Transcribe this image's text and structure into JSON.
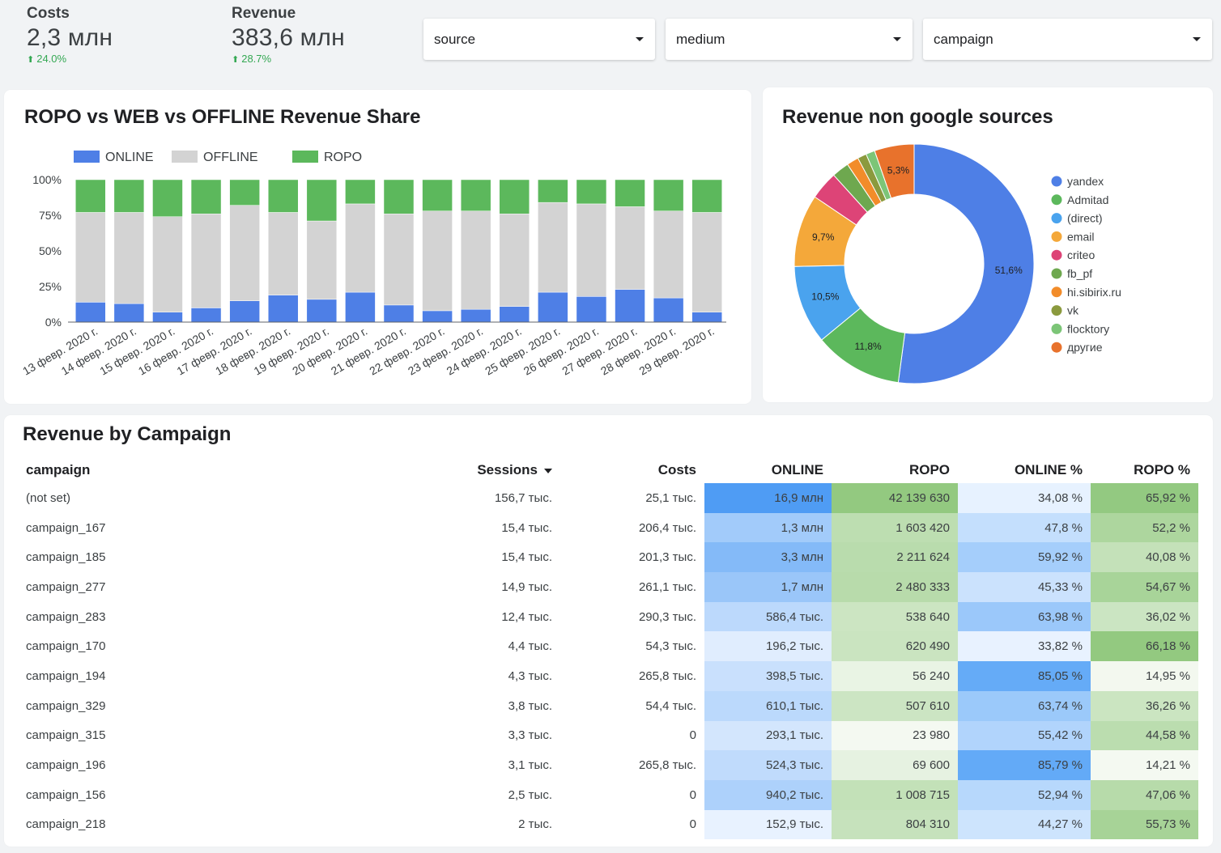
{
  "kpis": {
    "costs": {
      "label": "Costs",
      "value": "2,3 млн",
      "delta": "24.0%"
    },
    "revenue": {
      "label": "Revenue",
      "value": "383,6 млн",
      "delta": "28.7%"
    }
  },
  "filters": {
    "source": "source",
    "medium": "medium",
    "campaign": "campaign"
  },
  "colors": {
    "online": "#4e7fe6",
    "offline": "#d3d3d3",
    "ropo": "#5cb85c"
  },
  "chart_data": [
    {
      "type": "bar",
      "stacked": true,
      "title": "ROPO vs WEB vs OFFLINE Revenue Share",
      "legend": "top-left",
      "categories": [
        "13 февр. 2020 г.",
        "14 февр. 2020 г.",
        "15 февр. 2020 г.",
        "16 февр. 2020 г.",
        "17 февр. 2020 г.",
        "18 февр. 2020 г.",
        "19 февр. 2020 г.",
        "20 февр. 2020 г.",
        "21 февр. 2020 г.",
        "22 февр. 2020 г.",
        "23 февр. 2020 г.",
        "24 февр. 2020 г.",
        "25 февр. 2020 г.",
        "26 февр. 2020 г.",
        "27 февр. 2020 г.",
        "28 февр. 2020 г.",
        "29 февр. 2020 г."
      ],
      "y_ticks": [
        "0%",
        "25%",
        "50%",
        "75%",
        "100%"
      ],
      "ylim": [
        0,
        100
      ],
      "series": [
        {
          "name": "ONLINE",
          "color": "#4e7fe6",
          "values": [
            14,
            13,
            7,
            10,
            15,
            19,
            16,
            21,
            12,
            8,
            9,
            11,
            21,
            18,
            23,
            17,
            7
          ]
        },
        {
          "name": "OFFLINE",
          "color": "#d3d3d3",
          "values": [
            63,
            64,
            67,
            66,
            67,
            58,
            55,
            62,
            64,
            70,
            69,
            65,
            63,
            65,
            58,
            61,
            70
          ]
        },
        {
          "name": "ROPO",
          "color": "#5cb85c",
          "values": [
            23,
            23,
            26,
            24,
            18,
            23,
            29,
            17,
            24,
            22,
            22,
            24,
            16,
            17,
            19,
            22,
            23
          ]
        }
      ]
    },
    {
      "type": "pie",
      "donut": true,
      "title": "Revenue non google sources",
      "legend": "right",
      "slices": [
        {
          "name": "yandex",
          "value": 51.6,
          "label": "51,6%",
          "color": "#4e7fe6"
        },
        {
          "name": "Admitad",
          "value": 11.8,
          "label": "11,8%",
          "color": "#5cb85c"
        },
        {
          "name": "(direct)",
          "value": 10.5,
          "label": "10,5%",
          "color": "#4aa3ee"
        },
        {
          "name": "email",
          "value": 9.7,
          "label": "9,7%",
          "color": "#f4a83a"
        },
        {
          "name": "criteo",
          "value": 3.8,
          "label": "",
          "color": "#dd4477"
        },
        {
          "name": "fb_pf",
          "value": 2.3,
          "label": "",
          "color": "#6ea84f"
        },
        {
          "name": "hi.sibirix.ru",
          "value": 1.6,
          "label": "",
          "color": "#f28c2a"
        },
        {
          "name": "vk",
          "value": 1.2,
          "label": "",
          "color": "#8b9a3e"
        },
        {
          "name": "flocktory",
          "value": 1.2,
          "label": "",
          "color": "#7cc577"
        },
        {
          "name": "другие",
          "value": 5.3,
          "label": "5,3%",
          "color": "#e8722c"
        }
      ]
    }
  ],
  "table": {
    "title": "Revenue by Campaign",
    "columns": [
      "campaign",
      "Sessions",
      "Costs",
      "ONLINE",
      "ROPO",
      "ONLINE %",
      "ROPO %"
    ],
    "rows": [
      {
        "campaign": "(not set)",
        "sessions": "156,7 тыс.",
        "costs": "25,1 тыс.",
        "online": "16,9 млн",
        "ropo": "42 139 630",
        "online_pct": "34,08 %",
        "ropo_pct": "65,92 %",
        "online_num": 16900000,
        "ropo_num": 42139630,
        "online_pct_num": 34.08,
        "ropo_pct_num": 65.92
      },
      {
        "campaign": "campaign_167",
        "sessions": "15,4 тыс.",
        "costs": "206,4 тыс.",
        "online": "1,3 млн",
        "ropo": "1 603 420",
        "online_pct": "47,8 %",
        "ropo_pct": "52,2 %",
        "online_num": 1300000,
        "ropo_num": 1603420,
        "online_pct_num": 47.8,
        "ropo_pct_num": 52.2
      },
      {
        "campaign": "campaign_185",
        "sessions": "15,4 тыс.",
        "costs": "201,3 тыс.",
        "online": "3,3 млн",
        "ropo": "2 211 624",
        "online_pct": "59,92 %",
        "ropo_pct": "40,08 %",
        "online_num": 3300000,
        "ropo_num": 2211624,
        "online_pct_num": 59.92,
        "ropo_pct_num": 40.08
      },
      {
        "campaign": "campaign_277",
        "sessions": "14,9 тыс.",
        "costs": "261,1 тыс.",
        "online": "1,7 млн",
        "ropo": "2 480 333",
        "online_pct": "45,33 %",
        "ropo_pct": "54,67 %",
        "online_num": 1700000,
        "ropo_num": 2480333,
        "online_pct_num": 45.33,
        "ropo_pct_num": 54.67
      },
      {
        "campaign": "campaign_283",
        "sessions": "12,4 тыс.",
        "costs": "290,3 тыс.",
        "online": "586,4 тыс.",
        "ropo": "538 640",
        "online_pct": "63,98 %",
        "ropo_pct": "36,02 %",
        "online_num": 586400,
        "ropo_num": 538640,
        "online_pct_num": 63.98,
        "ropo_pct_num": 36.02
      },
      {
        "campaign": "campaign_170",
        "sessions": "4,4 тыс.",
        "costs": "54,3 тыс.",
        "online": "196,2 тыс.",
        "ropo": "620 490",
        "online_pct": "33,82 %",
        "ropo_pct": "66,18 %",
        "online_num": 196200,
        "ropo_num": 620490,
        "online_pct_num": 33.82,
        "ropo_pct_num": 66.18
      },
      {
        "campaign": "campaign_194",
        "sessions": "4,3 тыс.",
        "costs": "265,8 тыс.",
        "online": "398,5 тыс.",
        "ropo": "56 240",
        "online_pct": "85,05 %",
        "ropo_pct": "14,95 %",
        "online_num": 398500,
        "ropo_num": 56240,
        "online_pct_num": 85.05,
        "ropo_pct_num": 14.95
      },
      {
        "campaign": "campaign_329",
        "sessions": "3,8 тыс.",
        "costs": "54,4 тыс.",
        "online": "610,1 тыс.",
        "ropo": "507 610",
        "online_pct": "63,74 %",
        "ropo_pct": "36,26 %",
        "online_num": 610100,
        "ropo_num": 507610,
        "online_pct_num": 63.74,
        "ropo_pct_num": 36.26
      },
      {
        "campaign": "campaign_315",
        "sessions": "3,3 тыс.",
        "costs": "0",
        "online": "293,1 тыс.",
        "ropo": "23 980",
        "online_pct": "55,42 %",
        "ropo_pct": "44,58 %",
        "online_num": 293100,
        "ropo_num": 23980,
        "online_pct_num": 55.42,
        "ropo_pct_num": 44.58
      },
      {
        "campaign": "campaign_196",
        "sessions": "3,1 тыс.",
        "costs": "265,8 тыс.",
        "online": "524,3 тыс.",
        "ropo": "69 600",
        "online_pct": "85,79 %",
        "ropo_pct": "14,21 %",
        "online_num": 524300,
        "ropo_num": 69600,
        "online_pct_num": 85.79,
        "ropo_pct_num": 14.21
      },
      {
        "campaign": "campaign_156",
        "sessions": "2,5 тыс.",
        "costs": "0",
        "online": "940,2 тыс.",
        "ropo": "1 008 715",
        "online_pct": "52,94 %",
        "ropo_pct": "47,06 %",
        "online_num": 940200,
        "ropo_num": 1008715,
        "online_pct_num": 52.94,
        "ropo_pct_num": 47.06
      },
      {
        "campaign": "campaign_218",
        "sessions": "2 тыс.",
        "costs": "0",
        "online": "152,9 тыс.",
        "ropo": "804 310",
        "online_pct": "44,27 %",
        "ropo_pct": "55,73 %",
        "online_num": 152900,
        "ropo_num": 804310,
        "online_pct_num": 44.27,
        "ropo_pct_num": 55.73
      }
    ]
  }
}
